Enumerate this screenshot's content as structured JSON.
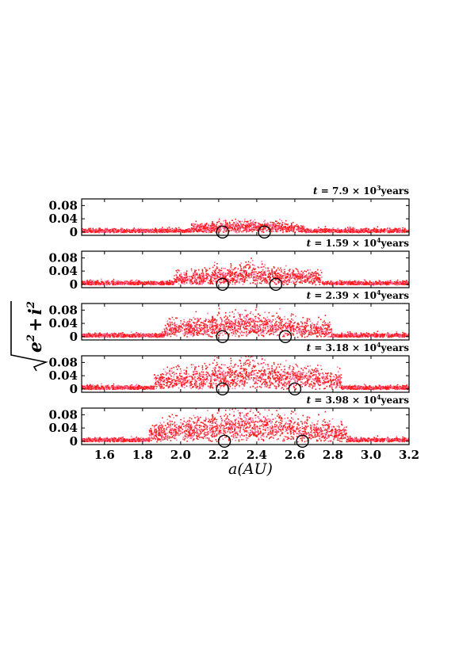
{
  "figure": {
    "ylabel_radicand": "e",
    "ylabel_exp": "2",
    "ylabel_plus": "+",
    "ylabel_i": "i",
    "ylabel_i_exp": "2",
    "xlabel": "a(AU)",
    "xticks": [
      "1.6",
      "1.8",
      "2.0",
      "2.2",
      "2.4",
      "2.6",
      "2.8",
      "3.0",
      "3.2"
    ],
    "yticks": [
      "0",
      "0.04",
      "0.08"
    ]
  },
  "colors": {
    "points": "#ff1a1a",
    "points_light": "#ff6fa0",
    "circle": "#000000"
  },
  "chart_data": [
    {
      "type": "scatter",
      "time_label": {
        "t": "t",
        "eq": "= 7.9 × 10",
        "exp": "3",
        "unit": "years"
      },
      "xlim": [
        1.48,
        3.2
      ],
      "ylim": [
        -0.01,
        0.1
      ],
      "grid": false,
      "spread": 0.045,
      "circles": [
        {
          "x": 2.22,
          "y": 0.0
        },
        {
          "x": 2.44,
          "y": 0.0
        }
      ]
    },
    {
      "type": "scatter",
      "time_label": {
        "t": "t",
        "eq": "= 1.59 × 10",
        "exp": "4",
        "unit": "years"
      },
      "xlim": [
        1.48,
        3.2
      ],
      "ylim": [
        -0.01,
        0.1
      ],
      "grid": false,
      "spread": 0.08,
      "circles": [
        {
          "x": 2.22,
          "y": 0.0
        },
        {
          "x": 2.5,
          "y": 0.0
        }
      ]
    },
    {
      "type": "scatter",
      "time_label": {
        "t": "t",
        "eq": "= 2.39 × 10",
        "exp": "4",
        "unit": "years"
      },
      "xlim": [
        1.48,
        3.2
      ],
      "ylim": [
        -0.01,
        0.1
      ],
      "grid": false,
      "spread": 0.1,
      "circles": [
        {
          "x": 2.22,
          "y": 0.0
        },
        {
          "x": 2.55,
          "y": 0.0
        }
      ]
    },
    {
      "type": "scatter",
      "time_label": {
        "t": "t",
        "eq": "= 3.18 × 10",
        "exp": "4",
        "unit": "years"
      },
      "xlim": [
        1.48,
        3.2
      ],
      "ylim": [
        -0.01,
        0.1
      ],
      "grid": false,
      "spread": 0.12,
      "circles": [
        {
          "x": 2.22,
          "y": 0.0
        },
        {
          "x": 2.6,
          "y": 0.0
        }
      ]
    },
    {
      "type": "scatter",
      "time_label": {
        "t": "t",
        "eq": "= 3.98 × 10",
        "exp": "4",
        "unit": "years"
      },
      "xlim": [
        1.48,
        3.2
      ],
      "ylim": [
        -0.01,
        0.1
      ],
      "grid": false,
      "spread": 0.13,
      "circles": [
        {
          "x": 2.23,
          "y": 0.0
        },
        {
          "x": 2.64,
          "y": 0.0
        }
      ]
    }
  ]
}
